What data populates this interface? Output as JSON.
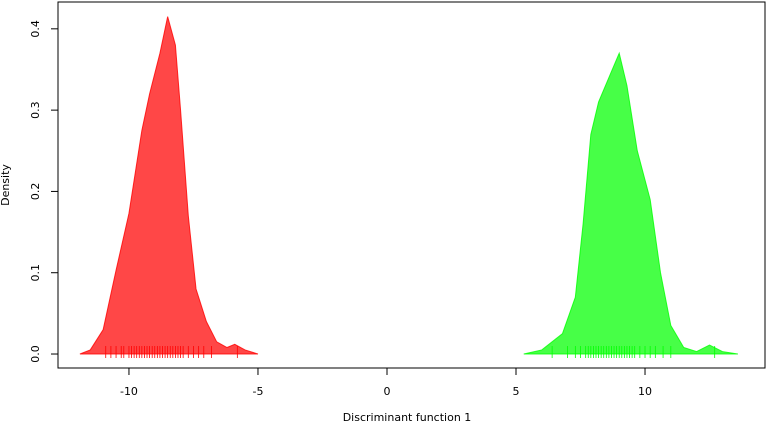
{
  "chart_data": {
    "type": "density",
    "x_label": "Discriminant function 1",
    "y_label": "Density",
    "xlim": [
      -12.75,
      14.65
    ],
    "ylim": [
      -0.0172,
      0.433
    ],
    "xticks": [
      -10,
      -5,
      0,
      5,
      10
    ],
    "yticks": [
      {
        "value": 0,
        "label": "0.0"
      },
      0.1,
      0.2,
      0.3,
      0.4
    ],
    "series": [
      {
        "color": "#ff0000",
        "x": [
          -11.9,
          -11.5,
          -11.0,
          -10.5,
          -10.0,
          -9.5,
          -9.2,
          -8.8,
          -8.5,
          -8.2,
          -8.0,
          -7.7,
          -7.4,
          -7.0,
          -6.6,
          -6.2,
          -5.9,
          -5.5,
          -5.0
        ],
        "values": [
          0,
          0.005,
          0.03,
          0.103,
          0.173,
          0.275,
          0.32,
          0.37,
          0.415,
          0.38,
          0.3,
          0.17,
          0.08,
          0.04,
          0.015,
          0.008,
          0.012,
          0.005,
          0
        ],
        "rug": [
          -10.9,
          -10.7,
          -10.5,
          -10.3,
          -10.2,
          -10.0,
          -9.9,
          -9.8,
          -9.7,
          -9.6,
          -9.5,
          -9.4,
          -9.3,
          -9.2,
          -9.1,
          -9.0,
          -8.9,
          -8.8,
          -8.7,
          -8.6,
          -8.5,
          -8.4,
          -8.3,
          -8.2,
          -8.1,
          -8.0,
          -7.9,
          -7.7,
          -7.5,
          -7.3,
          -7.1,
          -6.8,
          -5.8
        ]
      },
      {
        "color": "#00ff00",
        "x": [
          5.3,
          6.0,
          6.8,
          7.3,
          7.6,
          7.9,
          8.2,
          8.6,
          9.0,
          9.3,
          9.7,
          10.2,
          10.6,
          11.0,
          11.5,
          12.0,
          12.5,
          13.0,
          13.6
        ],
        "values": [
          0,
          0.005,
          0.025,
          0.07,
          0.16,
          0.27,
          0.31,
          0.34,
          0.37,
          0.33,
          0.25,
          0.19,
          0.1,
          0.035,
          0.008,
          0.003,
          0.011,
          0.003,
          0
        ],
        "rug": [
          6.4,
          7.0,
          7.3,
          7.5,
          7.7,
          7.8,
          7.9,
          8.0,
          8.1,
          8.2,
          8.3,
          8.4,
          8.5,
          8.6,
          8.7,
          8.8,
          8.9,
          9.0,
          9.1,
          9.2,
          9.3,
          9.4,
          9.5,
          9.6,
          9.8,
          10.0,
          10.2,
          10.4,
          10.7,
          11.0,
          12.7
        ]
      }
    ]
  }
}
